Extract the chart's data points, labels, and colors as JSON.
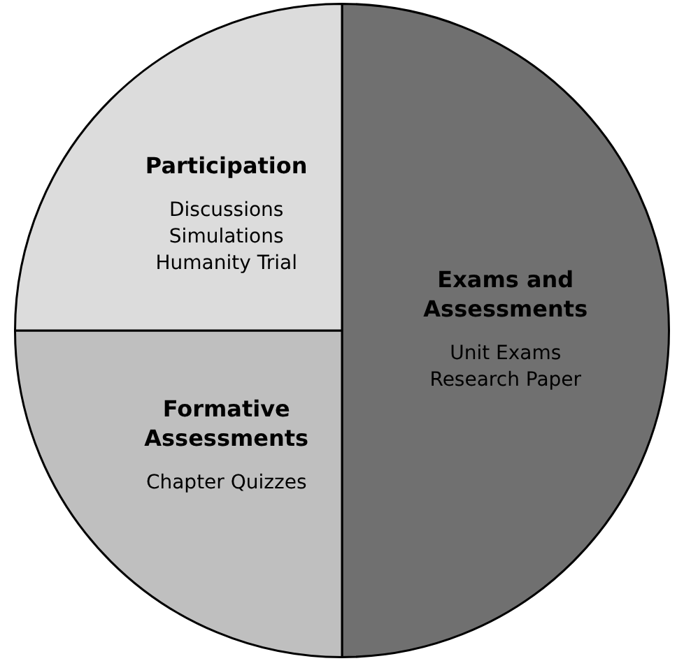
{
  "chart_data": {
    "type": "pie",
    "categories": [
      "Exams and Assessments",
      "Formative Assessments",
      "Participation"
    ],
    "values": [
      50,
      25,
      25
    ],
    "colors": [
      "#707070",
      "#bfbfbf",
      "#dcdcdc"
    ],
    "legend": false,
    "annotations": [
      {
        "text": "Discussions",
        "x": "Participation"
      },
      {
        "text": "Simulations",
        "x": "Participation"
      },
      {
        "text": "Humanity Trial",
        "x": "Participation"
      },
      {
        "text": "Unit Exams",
        "x": "Exams and Assessments"
      },
      {
        "text": "Research Paper",
        "x": "Exams and Assessments"
      },
      {
        "text": "Chapter Quizzes",
        "x": "Formative Assessments"
      }
    ]
  }
}
